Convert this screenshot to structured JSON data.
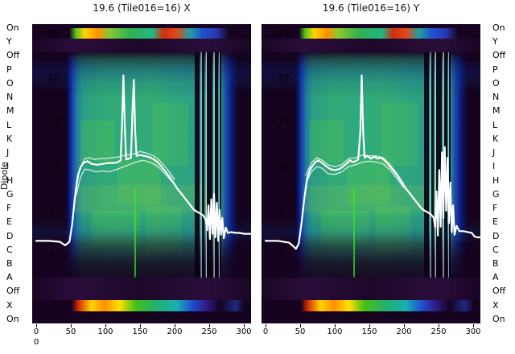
{
  "axes": {
    "y_title": "Dipole",
    "corner_label": "0",
    "row_labels": [
      "On",
      "Y",
      "Off",
      "P",
      "O",
      "N",
      "M",
      "L",
      "K",
      "J",
      "I",
      "H",
      "G",
      "F",
      "E",
      "D",
      "C",
      "B",
      "A",
      "Off",
      "X",
      "On"
    ]
  },
  "chart_data": {
    "type": "heatmap",
    "description": "Two spectrogram/waterfall panels (X and Y polarisation) with overlaid white bandpass traces, dipole rows labelled on both sides",
    "x_ticks": [
      0,
      50,
      100,
      150,
      200,
      250,
      300
    ],
    "x_range": [
      0,
      310
    ],
    "y_ticks": [
      {
        "value": 25,
        "label": "- 25",
        "gap_label": "25"
      },
      {
        "value": 20,
        "label": "- 20",
        "gap_label": "20"
      },
      {
        "value": 15,
        "label": "- 15",
        "gap_label": "15"
      },
      {
        "value": 10,
        "label": "- 10",
        "gap_label": "10"
      },
      {
        "value": 5,
        "label": "- 5",
        "gap_label": "5"
      },
      {
        "value": 0,
        "label": "- 0",
        "gap_label": "0"
      }
    ],
    "palette": {
      "trace": "#ffffff",
      "background_dark": "#15031f",
      "field_teal": "#2fa87c",
      "field_blue": "#1c45b0",
      "strip_yellow": "#ffd400",
      "strip_red": "#d83010",
      "green_line": "#3ae818"
    },
    "panels": [
      {
        "title": "19.6 (Tile016=16) X",
        "green_line": {
          "x": 143,
          "v_top": 7.5,
          "v_bottom": -2.5
        },
        "series": [
          {
            "name": "bandpass-x",
            "points": [
              [
                0,
                1.6
              ],
              [
                18,
                1.6
              ],
              [
                34,
                1.5
              ],
              [
                42,
                1.1
              ],
              [
                48,
                1.5
              ],
              [
                52,
                3.5
              ],
              [
                56,
                6.6
              ],
              [
                60,
                8.9
              ],
              [
                64,
                9.9
              ],
              [
                68,
                10.4
              ],
              [
                74,
                10.6
              ],
              [
                80,
                10.3
              ],
              [
                88,
                10.2
              ],
              [
                96,
                10.3
              ],
              [
                104,
                10.4
              ],
              [
                112,
                10.4
              ],
              [
                118,
                10.5
              ],
              [
                122,
                10.7
              ],
              [
                124,
                14.5
              ],
              [
                126,
                20.3
              ],
              [
                128,
                14.5
              ],
              [
                130,
                10.8
              ],
              [
                134,
                10.9
              ],
              [
                137,
                11.0
              ],
              [
                139,
                16.0
              ],
              [
                141,
                19.8
              ],
              [
                143,
                14.0
              ],
              [
                145,
                11.2
              ],
              [
                150,
                11.3
              ],
              [
                156,
                11.2
              ],
              [
                162,
                11.1
              ],
              [
                168,
                10.9
              ],
              [
                174,
                10.6
              ],
              [
                180,
                10.1
              ],
              [
                186,
                9.5
              ],
              [
                192,
                8.9
              ],
              [
                198,
                8.2
              ],
              [
                204,
                7.5
              ],
              [
                210,
                6.9
              ],
              [
                216,
                6.3
              ],
              [
                222,
                5.7
              ],
              [
                227,
                5.2
              ],
              [
                232,
                4.9
              ],
              [
                237,
                4.7
              ],
              [
                241,
                4.5
              ],
              [
                245,
                4.0
              ],
              [
                247,
                2.8
              ],
              [
                249,
                5.6
              ],
              [
                251,
                1.8
              ],
              [
                253,
                6.3
              ],
              [
                255,
                2.4
              ],
              [
                257,
                6.9
              ],
              [
                259,
                2.0
              ],
              [
                261,
                5.9
              ],
              [
                263,
                1.6
              ],
              [
                265,
                5.1
              ],
              [
                267,
                2.3
              ],
              [
                269,
                4.2
              ],
              [
                271,
                1.9
              ],
              [
                274,
                3.1
              ],
              [
                277,
                2.5
              ],
              [
                282,
                2.6
              ],
              [
                288,
                2.5
              ],
              [
                294,
                2.5
              ],
              [
                300,
                2.4
              ],
              [
                306,
                2.4
              ],
              [
                310,
                2.4
              ]
            ]
          },
          {
            "name": "bundle-upper",
            "points": [
              [
                58,
                7.5
              ],
              [
                62,
                9.3
              ],
              [
                66,
                10.2
              ],
              [
                70,
                10.9
              ],
              [
                76,
                11.0
              ],
              [
                84,
                10.8
              ],
              [
                92,
                10.9
              ],
              [
                100,
                10.9
              ],
              [
                110,
                11.0
              ],
              [
                120,
                11.1
              ],
              [
                130,
                11.3
              ],
              [
                140,
                11.4
              ],
              [
                150,
                11.7
              ],
              [
                160,
                11.5
              ],
              [
                170,
                11.2
              ],
              [
                178,
                10.7
              ],
              [
                186,
                10.0
              ],
              [
                194,
                9.2
              ],
              [
                200,
                8.5
              ]
            ]
          },
          {
            "name": "bundle-lower",
            "points": [
              [
                58,
                6.8
              ],
              [
                64,
                8.8
              ],
              [
                70,
                9.7
              ],
              [
                78,
                9.6
              ],
              [
                86,
                9.4
              ],
              [
                94,
                9.5
              ],
              [
                104,
                9.4
              ],
              [
                114,
                9.6
              ],
              [
                124,
                9.9
              ],
              [
                134,
                10.2
              ],
              [
                144,
                10.5
              ],
              [
                154,
                10.7
              ],
              [
                164,
                10.5
              ],
              [
                172,
                10.2
              ],
              [
                180,
                9.7
              ],
              [
                188,
                9.0
              ],
              [
                196,
                8.3
              ],
              [
                202,
                7.8
              ]
            ]
          }
        ]
      },
      {
        "title": "19.6 (Tile016=16) Y",
        "green_line": {
          "x": 128,
          "v_top": 7.5,
          "v_bottom": -2.5
        },
        "series": [
          {
            "name": "bandpass-y",
            "points": [
              [
                0,
                1.6
              ],
              [
                18,
                1.6
              ],
              [
                34,
                1.4
              ],
              [
                40,
                1.0
              ],
              [
                44,
                0.7
              ],
              [
                48,
                1.3
              ],
              [
                52,
                3.6
              ],
              [
                56,
                6.4
              ],
              [
                60,
                8.6
              ],
              [
                64,
                9.6
              ],
              [
                68,
                10.1
              ],
              [
                72,
                10.5
              ],
              [
                76,
                10.7
              ],
              [
                82,
                10.4
              ],
              [
                88,
                10.0
              ],
              [
                94,
                9.7
              ],
              [
                100,
                9.6
              ],
              [
                106,
                9.7
              ],
              [
                112,
                10.0
              ],
              [
                118,
                10.4
              ],
              [
                122,
                10.7
              ],
              [
                126,
                10.5
              ],
              [
                130,
                10.6
              ],
              [
                134,
                10.8
              ],
              [
                137,
                14.0
              ],
              [
                139,
                20.3
              ],
              [
                141,
                14.0
              ],
              [
                143,
                11.0
              ],
              [
                147,
                11.2
              ],
              [
                152,
                10.9
              ],
              [
                157,
                11.1
              ],
              [
                162,
                10.9
              ],
              [
                167,
                11.0
              ],
              [
                172,
                10.7
              ],
              [
                178,
                10.2
              ],
              [
                184,
                9.6
              ],
              [
                190,
                9.0
              ],
              [
                196,
                8.3
              ],
              [
                202,
                7.6
              ],
              [
                208,
                7.0
              ],
              [
                214,
                6.4
              ],
              [
                220,
                5.8
              ],
              [
                225,
                5.3
              ],
              [
                230,
                5.0
              ],
              [
                235,
                4.8
              ],
              [
                239,
                4.6
              ],
              [
                243,
                4.2
              ],
              [
                245,
                3.2
              ],
              [
                247,
                7.2
              ],
              [
                249,
                2.2
              ],
              [
                251,
                9.6
              ],
              [
                253,
                3.2
              ],
              [
                255,
                11.6
              ],
              [
                257,
                4.2
              ],
              [
                259,
                12.2
              ],
              [
                261,
                5.0
              ],
              [
                263,
                11.0
              ],
              [
                265,
                3.6
              ],
              [
                267,
                8.2
              ],
              [
                269,
                2.6
              ],
              [
                271,
                5.6
              ],
              [
                273,
                2.3
              ],
              [
                276,
                3.3
              ],
              [
                280,
                2.7
              ],
              [
                286,
                2.7
              ],
              [
                292,
                2.6
              ],
              [
                298,
                2.5
              ],
              [
                302,
                2.1
              ],
              [
                306,
                2.0
              ],
              [
                310,
                2.0
              ]
            ]
          },
          {
            "name": "bundle-upper",
            "points": [
              [
                58,
                9.0
              ],
              [
                66,
                10.4
              ],
              [
                74,
                11.0
              ],
              [
                82,
                10.7
              ],
              [
                90,
                10.2
              ],
              [
                100,
                10.0
              ],
              [
                110,
                10.2
              ],
              [
                120,
                10.9
              ],
              [
                130,
                11.0
              ],
              [
                140,
                11.3
              ],
              [
                150,
                11.2
              ],
              [
                160,
                11.2
              ],
              [
                170,
                11.0
              ],
              [
                180,
                10.2
              ],
              [
                190,
                9.2
              ],
              [
                200,
                8.0
              ]
            ]
          },
          {
            "name": "bundle-lower",
            "points": [
              [
                58,
                8.0
              ],
              [
                66,
                9.4
              ],
              [
                74,
                10.0
              ],
              [
                82,
                9.8
              ],
              [
                90,
                9.2
              ],
              [
                100,
                9.1
              ],
              [
                110,
                9.4
              ],
              [
                120,
                10.0
              ],
              [
                130,
                10.2
              ],
              [
                140,
                10.5
              ],
              [
                150,
                10.6
              ],
              [
                160,
                10.5
              ],
              [
                170,
                10.3
              ],
              [
                180,
                9.6
              ],
              [
                190,
                8.6
              ],
              [
                200,
                7.6
              ]
            ]
          }
        ]
      }
    ]
  }
}
